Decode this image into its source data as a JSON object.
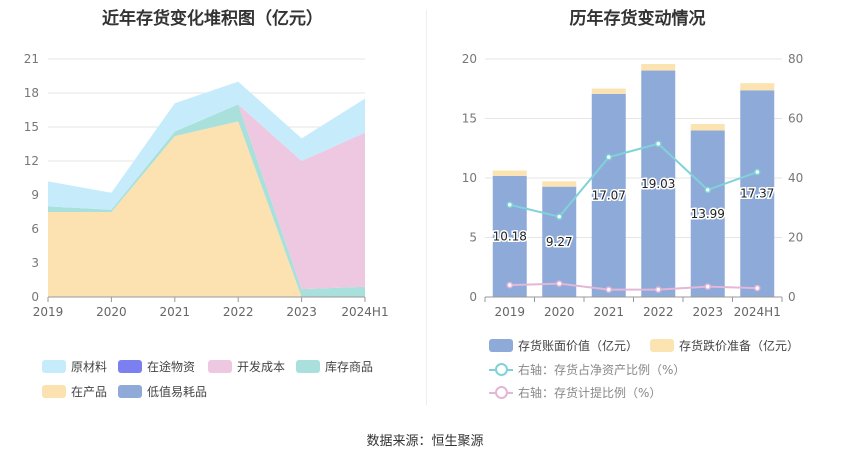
{
  "source": "数据来源：恒生聚源",
  "chart_data": [
    {
      "type": "area",
      "stacked": true,
      "title": "近年存货变化堆积图（亿元）",
      "categories": [
        "2019",
        "2020",
        "2021",
        "2022",
        "2023",
        "2024H1"
      ],
      "ylim": [
        0,
        21
      ],
      "yticks": [
        0,
        3,
        6,
        9,
        12,
        15,
        18,
        21
      ],
      "grid": true,
      "legend_position": "bottom",
      "series": [
        {
          "name": "在产品",
          "color": "#fbe2b0",
          "values": [
            7.5,
            7.5,
            14.2,
            15.5,
            0.0,
            0.0
          ]
        },
        {
          "name": "低值易耗品",
          "color": "#8fa9d8",
          "values": [
            0.0,
            0.0,
            0.0,
            0.0,
            0.0,
            0.0
          ]
        },
        {
          "name": "库存商品",
          "color": "#a9e0dc",
          "values": [
            0.5,
            0.2,
            0.4,
            1.5,
            0.7,
            0.9
          ]
        },
        {
          "name": "开发成本",
          "color": "#eec8e0",
          "values": [
            0.0,
            0.0,
            0.0,
            0.0,
            11.3,
            13.6
          ]
        },
        {
          "name": "在途物资",
          "color": "#7b7ff0",
          "values": [
            0.0,
            0.0,
            0.0,
            0.0,
            0.0,
            0.0
          ]
        },
        {
          "name": "原材料",
          "color": "#c6ecfc",
          "values": [
            2.2,
            1.5,
            2.5,
            2.0,
            2.0,
            3.0
          ]
        }
      ],
      "legend_order": [
        "原材料",
        "在途物资",
        "开发成本",
        "库存商品",
        "在产品",
        "低值易耗品"
      ]
    },
    {
      "type": "bar",
      "stacked": true,
      "title": "历年存货变动情况",
      "categories": [
        "2019",
        "2020",
        "2021",
        "2022",
        "2023",
        "2024H1"
      ],
      "ylim": [
        0,
        20
      ],
      "yticks": [
        0,
        5,
        10,
        15,
        20
      ],
      "y2lim": [
        0,
        80
      ],
      "y2ticks": [
        0,
        20,
        40,
        60,
        80
      ],
      "grid": true,
      "legend_position": "bottom",
      "series": [
        {
          "name": "存货账面价值（亿元）",
          "color": "#8eaad9",
          "axis": "left",
          "values": [
            10.18,
            9.27,
            17.07,
            19.03,
            13.99,
            17.37
          ],
          "labels": [
            "10.18",
            "9.27",
            "17.07",
            "19.03",
            "13.99",
            "17.37"
          ]
        },
        {
          "name": "存货跌价准备（亿元）",
          "color": "#fbe3b2",
          "axis": "left",
          "values": [
            0.45,
            0.45,
            0.45,
            0.55,
            0.55,
            0.6
          ]
        }
      ],
      "lines": [
        {
          "name": "右轴：存货占净资产比例（%）",
          "color": "#7fd3d8",
          "axis": "right",
          "values": [
            31,
            27,
            47,
            51.5,
            36,
            42
          ]
        },
        {
          "name": "右轴：存货计提比例（%）",
          "color": "#e4b6d8",
          "axis": "right",
          "values": [
            4,
            4.5,
            2.5,
            2.5,
            3.5,
            3
          ]
        }
      ]
    }
  ]
}
